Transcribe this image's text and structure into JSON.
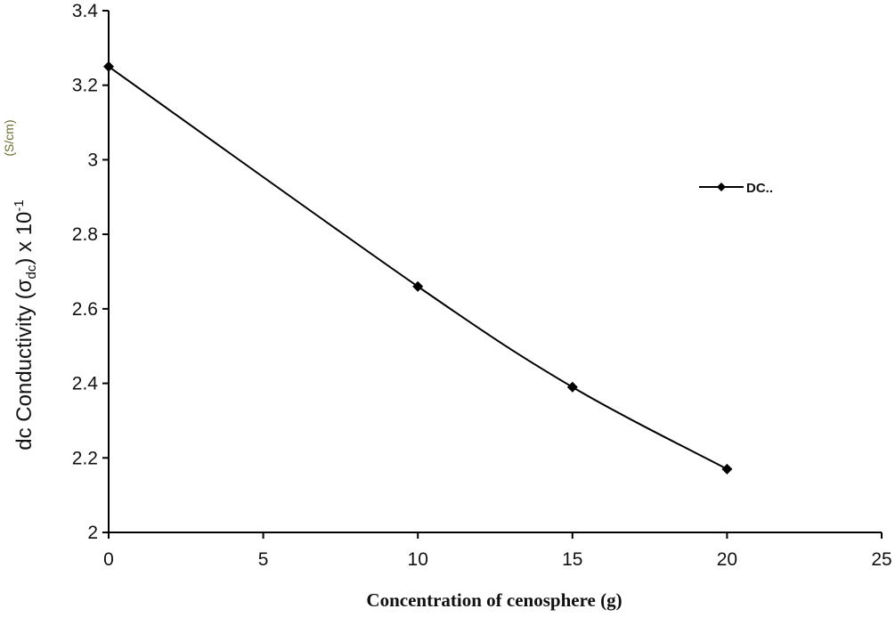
{
  "chart_data": {
    "type": "line",
    "title": "",
    "xlabel": "Concentration of cenosphere (g)",
    "ylabel": {
      "prefix": "dc Conductivity (σ",
      "subscript": "dc",
      "middle": ") x 10",
      "superscript": "-1",
      "unit": "(S/cm)"
    },
    "xlim": [
      0,
      25
    ],
    "ylim": [
      2,
      3.4
    ],
    "x_ticks": [
      "0",
      "5",
      "10",
      "15",
      "20",
      "25"
    ],
    "y_ticks": [
      "2",
      "2.2",
      "2.4",
      "2.6",
      "2.8",
      "3",
      "3.2",
      "3.4"
    ],
    "series": [
      {
        "name": "DC..",
        "x": [
          0,
          10,
          15,
          20
        ],
        "y": [
          3.25,
          2.66,
          2.39,
          2.17
        ],
        "color": "#000000",
        "marker": "diamond"
      }
    ],
    "legend": {
      "position": "right",
      "label": "DC.."
    },
    "grid": false
  }
}
